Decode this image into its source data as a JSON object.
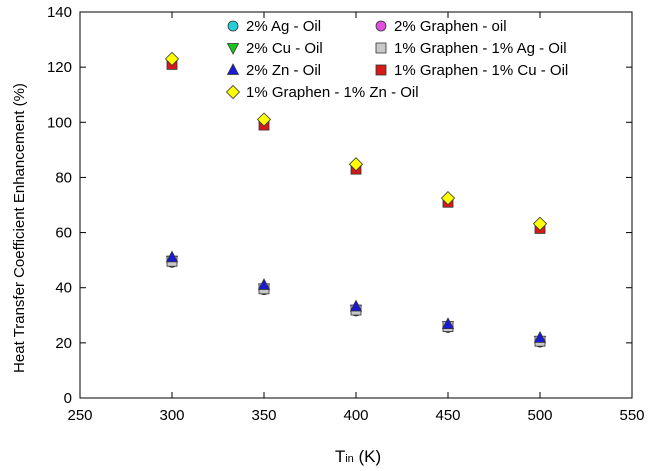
{
  "chart_data": {
    "type": "scatter",
    "xlabel_main": "T",
    "xlabel_sub": "in",
    "xlabel_unit": " (K)",
    "ylabel": "Heat Transfer Coefficient Enhancement (%)",
    "xlim": [
      250,
      550
    ],
    "ylim": [
      0,
      140
    ],
    "xticks": [
      250,
      300,
      350,
      400,
      450,
      500,
      550
    ],
    "yticks": [
      0,
      20,
      40,
      60,
      80,
      100,
      120,
      140
    ],
    "x": [
      300,
      350,
      400,
      450,
      500
    ],
    "legend_position": "top-center",
    "series": [
      {
        "name": "2% Ag - Oil",
        "marker": "circle",
        "color": "#22cfd6",
        "values": [
          49.5,
          39.5,
          31.8,
          25.8,
          20.5
        ]
      },
      {
        "name": "2% Graphen - oil",
        "marker": "circle",
        "color": "#e04de0",
        "values": [
          49.2,
          39.3,
          31.6,
          25.6,
          20.3
        ]
      },
      {
        "name": "2% Cu - Oil",
        "marker": "triangle-down",
        "color": "#19c519",
        "values": [
          49.8,
          39.7,
          32.0,
          26.0,
          20.7
        ]
      },
      {
        "name": "1% Graphen - 1% Ag - Oil",
        "marker": "square",
        "color": "#c8c8c8",
        "values": [
          49.6,
          39.6,
          31.9,
          25.9,
          20.6
        ]
      },
      {
        "name": "2% Zn - Oil",
        "marker": "triangle-up",
        "color": "#1a1ad6",
        "values": [
          51.0,
          41.0,
          33.2,
          26.8,
          21.8
        ]
      },
      {
        "name": "1% Graphen - 1% Cu - Oil",
        "marker": "square",
        "color": "#d61a1a",
        "values": [
          121.0,
          99.0,
          83.0,
          71.0,
          61.5
        ]
      },
      {
        "name": "1% Graphen - 1% Zn - Oil",
        "marker": "diamond",
        "color": "#ffff00",
        "values": [
          123.0,
          101.0,
          84.8,
          72.5,
          63.2
        ]
      }
    ]
  }
}
